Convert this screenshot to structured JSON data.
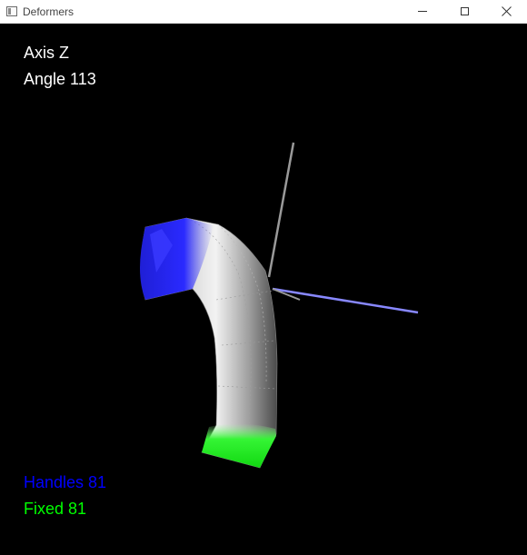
{
  "window": {
    "title": "Deformers",
    "controls": {
      "minimize": "minimize-icon",
      "maximize": "maximize-icon",
      "close": "close-icon"
    }
  },
  "hud": {
    "axis_label": "Axis Z",
    "angle_label": "Angle 113",
    "handles_label": "Handles 81",
    "fixed_label": "Fixed 81"
  },
  "colors": {
    "background": "#000000",
    "hud_text": "#ffffff",
    "handles": "#0000ff",
    "fixed": "#00ff00",
    "mesh": "#c8c8c8",
    "axis_line": "#8888ff",
    "vertical_axis": "#9a9a9a"
  }
}
